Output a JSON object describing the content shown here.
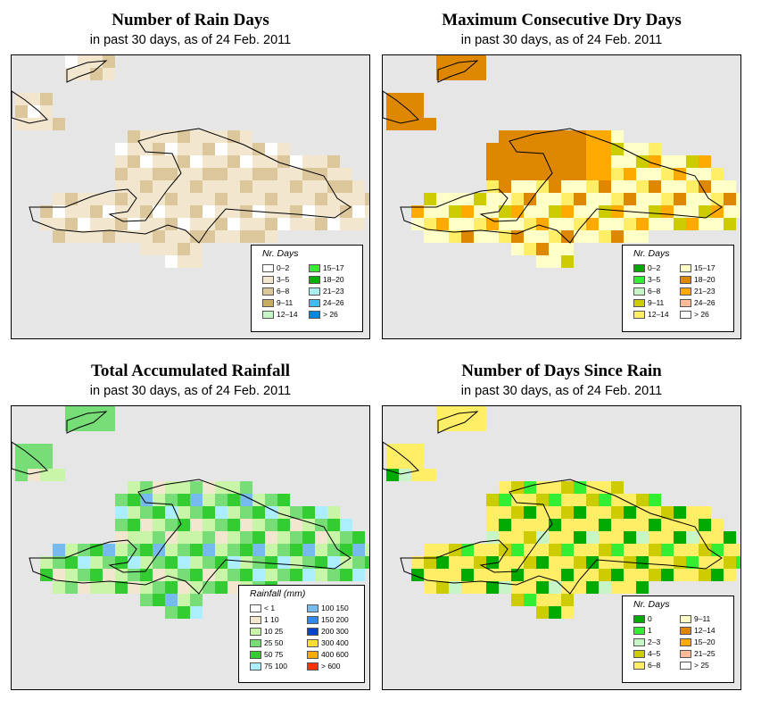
{
  "panels": [
    {
      "id": "rain_days",
      "title": "Number of Rain Days",
      "subtitle": "in past 30 days, as of  24 Feb. 2011",
      "legend": {
        "title": "Nr. Days",
        "items": [
          {
            "label": "0–2",
            "color": "#ffffff"
          },
          {
            "label": "3–5",
            "color": "#f2e6cf"
          },
          {
            "label": "6–8",
            "color": "#dcc69c"
          },
          {
            "label": "9–11",
            "color": "#c8ad64"
          },
          {
            "label": "12–14",
            "color": "#c8f5c8"
          },
          {
            "label": "15–17",
            "color": "#33ee33"
          },
          {
            "label": "18–20",
            "color": "#00b000"
          },
          {
            "label": "21–23",
            "color": "#aaeeee"
          },
          {
            "label": "24–26",
            "color": "#44bbee"
          },
          {
            "label": "> 26",
            "color": "#0088dd"
          }
        ]
      }
    },
    {
      "id": "dry_days",
      "title": "Maximum Consecutive Dry Days",
      "subtitle": "in past 30 days, as of  24 Feb. 2011",
      "legend": {
        "title": "Nr. Days",
        "items": [
          {
            "label": "0–2",
            "color": "#00aa00"
          },
          {
            "label": "3–5",
            "color": "#33ee33"
          },
          {
            "label": "6–8",
            "color": "#c8f5c8"
          },
          {
            "label": "9–11",
            "color": "#cccc00"
          },
          {
            "label": "12–14",
            "color": "#ffee66"
          },
          {
            "label": "15–17",
            "color": "#ffffc8"
          },
          {
            "label": "18–20",
            "color": "#dd8800"
          },
          {
            "label": "21–23",
            "color": "#ffaa00"
          },
          {
            "label": "24–26",
            "color": "#ffbb99"
          },
          {
            "label": "> 26",
            "color": "#ffffff"
          }
        ]
      }
    },
    {
      "id": "rainfall",
      "title": "Total Accumulated Rainfall",
      "subtitle": "in past 30 days, as of  24 Feb. 2011",
      "legend": {
        "title": "Rainfall (mm)",
        "items": [
          {
            "label": "< 1",
            "color": "#ffffff"
          },
          {
            "label": "1   10",
            "color": "#f2e6cf"
          },
          {
            "label": "10   25",
            "color": "#c8f5a8"
          },
          {
            "label": "25   50",
            "color": "#77dd77"
          },
          {
            "label": "50   75",
            "color": "#33cc33"
          },
          {
            "label": "75  100",
            "color": "#aaeeff"
          },
          {
            "label": "100  150",
            "color": "#77bbee"
          },
          {
            "label": "150  200",
            "color": "#3388ee"
          },
          {
            "label": "200  300",
            "color": "#0044cc"
          },
          {
            "label": "300  400",
            "color": "#ffdd33"
          },
          {
            "label": "400  600",
            "color": "#ffaa00"
          },
          {
            "label": "> 600",
            "color": "#ff3300"
          }
        ]
      }
    },
    {
      "id": "since_rain",
      "title": "Number of Days Since Rain",
      "subtitle": "in past 30 days, as of  24 Feb. 2011",
      "legend": {
        "title": "Nr. Days",
        "items": [
          {
            "label": "0",
            "color": "#00aa00"
          },
          {
            "label": "1",
            "color": "#33ee33"
          },
          {
            "label": "2–3",
            "color": "#c8f5c8"
          },
          {
            "label": "4–5",
            "color": "#cccc00"
          },
          {
            "label": "6–8",
            "color": "#ffee66"
          },
          {
            "label": "9–11",
            "color": "#ffffc8"
          },
          {
            "label": "12–14",
            "color": "#dd8800"
          },
          {
            "label": "15–20",
            "color": "#ffaa00"
          },
          {
            "label": "21–25",
            "color": "#ffbb99"
          },
          {
            "label": "> 25",
            "color": "#ffffff"
          }
        ]
      }
    }
  ]
}
